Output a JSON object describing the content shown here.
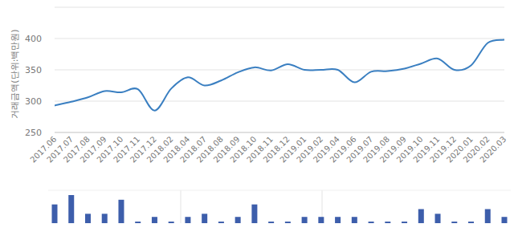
{
  "chart_data": [
    {
      "type": "line",
      "y_label": "거래금액(단위:백만원)",
      "categories": [
        "2017.06",
        "2017.07",
        "2017.08",
        "2017.09",
        "2017.10",
        "2017.11",
        "2017.12",
        "2018.02",
        "2018.04",
        "2018.07",
        "2018.08",
        "2018.09",
        "2018.10",
        "2018.11",
        "2018.12",
        "2019.01",
        "2019.02",
        "2019.04",
        "2019.06",
        "2019.07",
        "2019.08",
        "2019.09",
        "2019.10",
        "2019.11",
        "2019.12",
        "2020.01",
        "2020.02",
        "2020.03"
      ],
      "values": [
        293,
        299,
        306,
        316,
        314,
        319,
        285,
        320,
        338,
        325,
        333,
        346,
        354,
        349,
        359,
        350,
        350,
        350,
        330,
        347,
        348,
        352,
        360,
        368,
        350,
        357,
        393,
        398
      ],
      "color": "#3a7fc1",
      "ylim": [
        250,
        450
      ],
      "yticks": [
        250,
        300,
        350,
        400
      ],
      "grid": true
    },
    {
      "type": "bar",
      "categories": [
        null,
        null,
        null,
        null,
        null,
        null,
        null,
        null,
        null,
        null,
        null,
        null,
        null,
        null,
        null,
        null,
        null,
        null,
        null,
        null,
        null,
        null,
        null,
        null,
        null,
        null,
        null,
        null
      ],
      "values": [
        12,
        18,
        6,
        6,
        15,
        1,
        4,
        1,
        4,
        6,
        1,
        4,
        12,
        1,
        1,
        4,
        4,
        4,
        4,
        1,
        1,
        1,
        9,
        6,
        1,
        1,
        9,
        4
      ],
      "color": "#3d5eab",
      "ylim": [
        0,
        18
      ],
      "tick_labels": false
    }
  ]
}
